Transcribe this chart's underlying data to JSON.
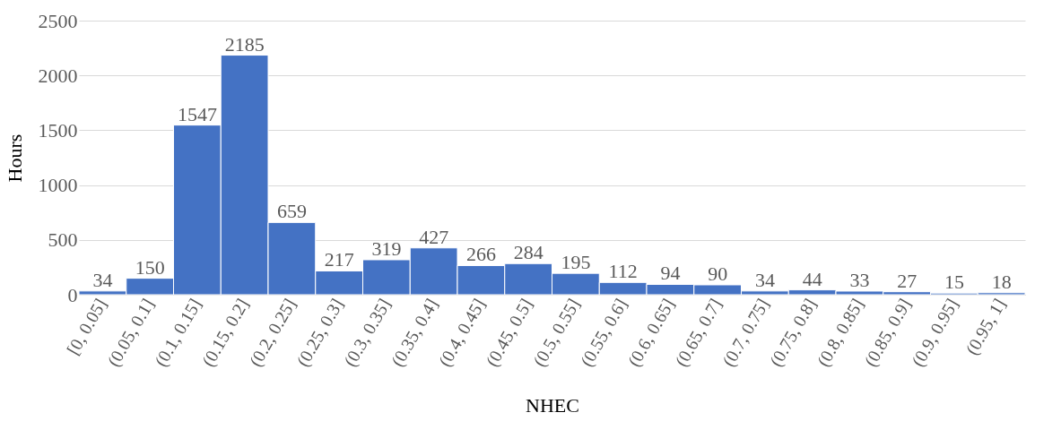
{
  "chart_data": {
    "type": "bar",
    "xlabel": "NHEC",
    "ylabel": "Hours",
    "categories": [
      "[0, 0.05]",
      "(0.05, 0.1]",
      "(0.1, 0.15]",
      "(0.15, 0.2]",
      "(0.2, 0.25]",
      "(0.25, 0.3]",
      "(0.3, 0.35]",
      "(0.35, 0.4]",
      "(0.4, 0.45]",
      "(0.45, 0.5]",
      "(0.5, 0.55]",
      "(0.55, 0.6]",
      "(0.6, 0.65]",
      "(0.65, 0.7]",
      "(0.7, 0.75]",
      "(0.75, 0.8]",
      "(0.8, 0.85]",
      "(0.85, 0.9]",
      "(0.9, 0.95]",
      "(0.95, 1]"
    ],
    "values": [
      34,
      150,
      1547,
      2185,
      659,
      217,
      319,
      427,
      266,
      284,
      195,
      112,
      94,
      90,
      34,
      44,
      33,
      27,
      15,
      18
    ],
    "color": "#4472c4",
    "ylim": [
      0,
      2500
    ],
    "yticks": [
      0,
      500,
      1000,
      1500,
      2000,
      2500
    ],
    "grid": "y",
    "data_labels": true
  }
}
